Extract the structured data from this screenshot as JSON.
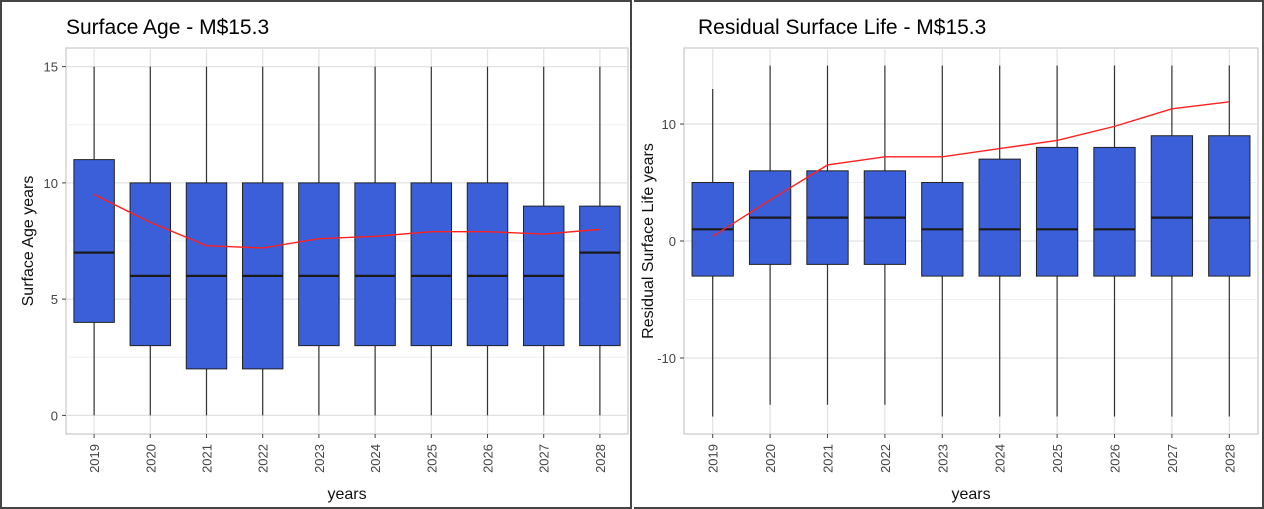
{
  "chart_data": [
    {
      "type": "box",
      "title": "Surface Age - M$15.3",
      "xlabel": "years",
      "ylabel": "Surface Age years",
      "ylim": [
        -0.8,
        15.8
      ],
      "yticks": [
        0,
        5,
        10,
        15
      ],
      "grid": true,
      "categories": [
        "2019",
        "2020",
        "2021",
        "2022",
        "2023",
        "2024",
        "2025",
        "2026",
        "2027",
        "2028"
      ],
      "boxes": [
        {
          "min": 0,
          "q1": 4,
          "median": 7,
          "q3": 11,
          "max": 15
        },
        {
          "min": 0,
          "q1": 3,
          "median": 6,
          "q3": 10,
          "max": 15
        },
        {
          "min": 0,
          "q1": 2,
          "median": 6,
          "q3": 10,
          "max": 15
        },
        {
          "min": 0,
          "q1": 2,
          "median": 6,
          "q3": 10,
          "max": 15
        },
        {
          "min": 0,
          "q1": 3,
          "median": 6,
          "q3": 10,
          "max": 15
        },
        {
          "min": 0,
          "q1": 3,
          "median": 6,
          "q3": 10,
          "max": 15
        },
        {
          "min": 0,
          "q1": 3,
          "median": 6,
          "q3": 10,
          "max": 15
        },
        {
          "min": 0,
          "q1": 3,
          "median": 6,
          "q3": 10,
          "max": 15
        },
        {
          "min": 0,
          "q1": 3,
          "median": 6,
          "q3": 9,
          "max": 15
        },
        {
          "min": 0,
          "q1": 3,
          "median": 7,
          "q3": 9,
          "max": 15
        }
      ],
      "mean_line": [
        9.5,
        8.3,
        7.3,
        7.2,
        7.6,
        7.7,
        7.9,
        7.9,
        7.8,
        8.0
      ],
      "box_color": "#3a5fd9",
      "line_color": "#ff2020"
    },
    {
      "type": "box",
      "title": "Residual Surface Life - M$15.3",
      "xlabel": "years",
      "ylabel": "Residual Surface Life years",
      "ylim": [
        -16.5,
        16.5
      ],
      "yticks": [
        -10,
        0,
        10
      ],
      "grid": true,
      "categories": [
        "2019",
        "2020",
        "2021",
        "2022",
        "2023",
        "2024",
        "2025",
        "2026",
        "2027",
        "2028"
      ],
      "boxes": [
        {
          "min": -15,
          "q1": -3,
          "median": 1,
          "q3": 5,
          "max": 13
        },
        {
          "min": -14,
          "q1": -2,
          "median": 2,
          "q3": 6,
          "max": 15
        },
        {
          "min": -14,
          "q1": -2,
          "median": 2,
          "q3": 6,
          "max": 15
        },
        {
          "min": -14,
          "q1": -2,
          "median": 2,
          "q3": 6,
          "max": 15
        },
        {
          "min": -15,
          "q1": -3,
          "median": 1,
          "q3": 5,
          "max": 15
        },
        {
          "min": -15,
          "q1": -3,
          "median": 1,
          "q3": 7,
          "max": 15
        },
        {
          "min": -15,
          "q1": -3,
          "median": 1,
          "q3": 8,
          "max": 15
        },
        {
          "min": -15,
          "q1": -3,
          "median": 1,
          "q3": 8,
          "max": 15
        },
        {
          "min": -15,
          "q1": -3,
          "median": 2,
          "q3": 9,
          "max": 15
        },
        {
          "min": -15,
          "q1": -3,
          "median": 2,
          "q3": 9,
          "max": 15
        }
      ],
      "mean_line": [
        0.4,
        3.5,
        6.5,
        7.2,
        7.2,
        7.9,
        8.6,
        9.8,
        11.3,
        11.9
      ],
      "box_color": "#3a5fd9",
      "line_color": "#ff2020"
    }
  ]
}
